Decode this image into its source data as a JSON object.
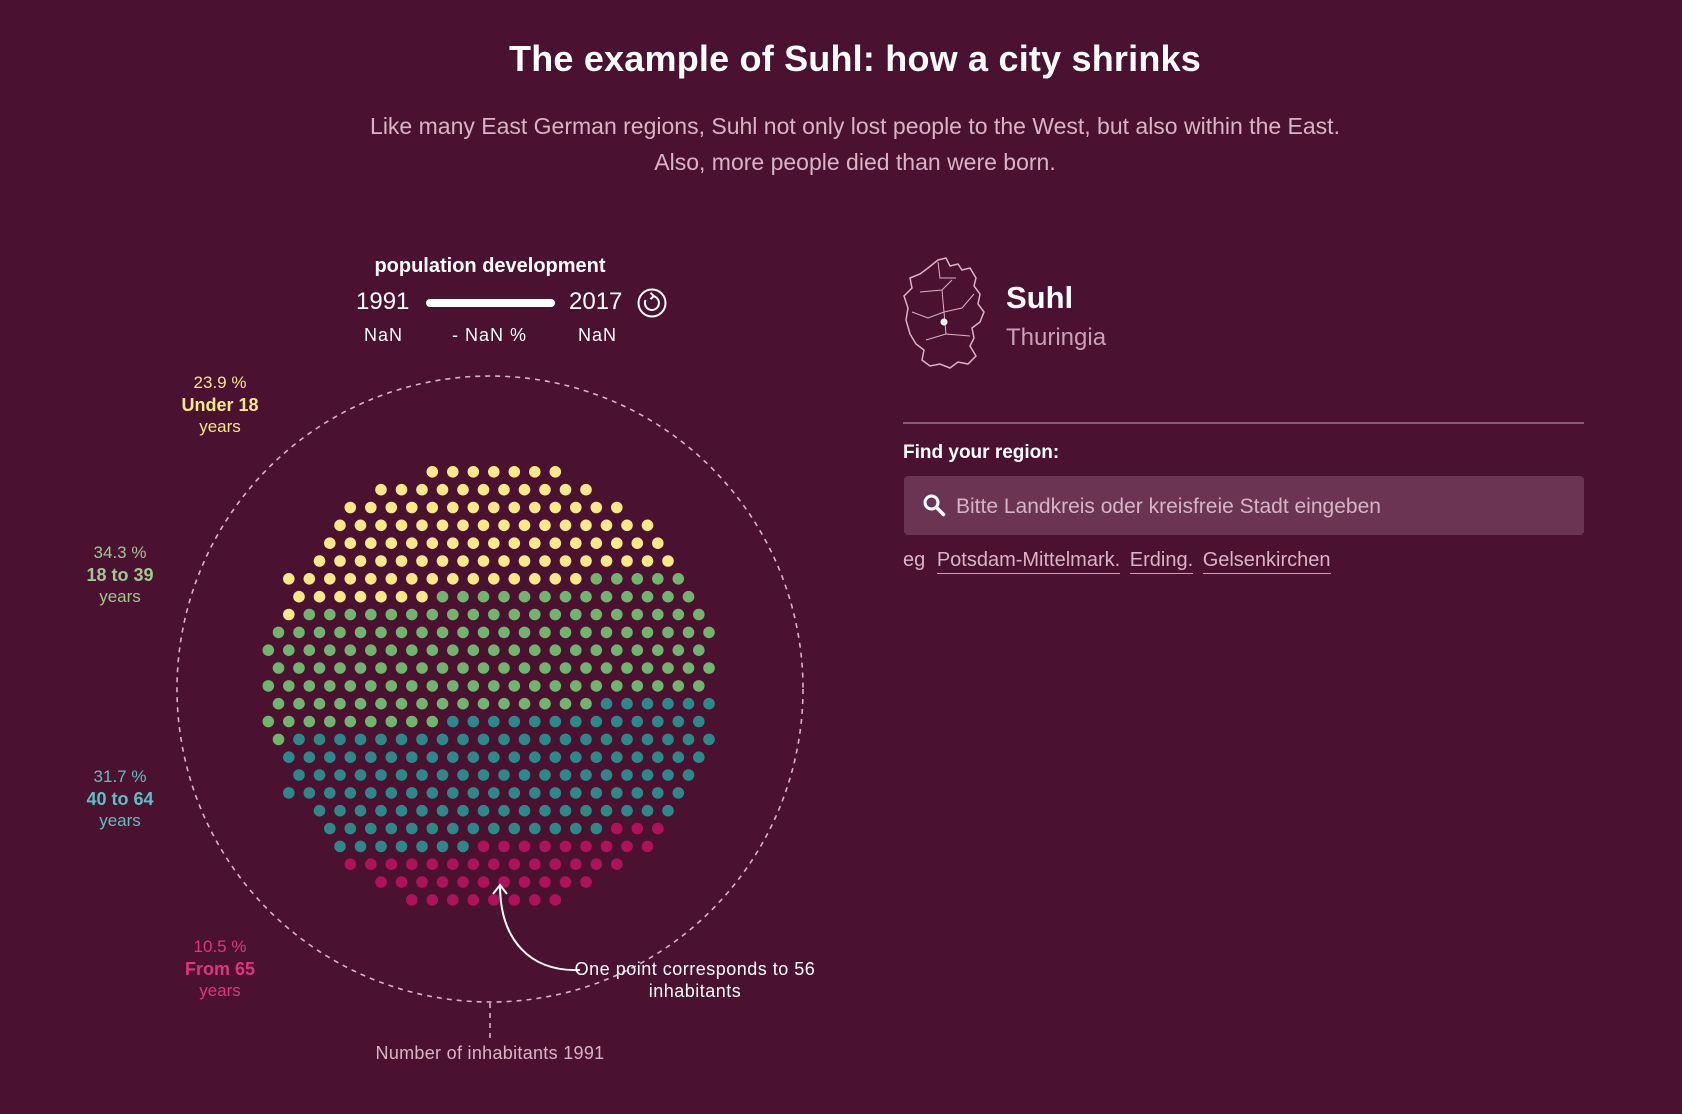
{
  "header": {
    "title": "The example of Suhl: how a city shrinks",
    "subtitle": "Like many East German regions, Suhl not only lost people to the West, but also within the East. Also, more people died than were born."
  },
  "development": {
    "title": "population development",
    "year_start": "1991",
    "year_end": "2017",
    "value_start": "NaN",
    "change": "- NaN %",
    "value_end": "NaN",
    "slider_position": 1.0,
    "reset_icon": "reset-icon"
  },
  "groups": [
    {
      "percent": "23.9 %",
      "label": "Under 18",
      "unit": "years",
      "color": "#f7e983"
    },
    {
      "percent": "34.3 %",
      "label": "18 to 39",
      "unit": "years",
      "color": "#6fb56c"
    },
    {
      "percent": "31.7 %",
      "label": "40 to 64",
      "unit": "years",
      "color": "#2a8a8a"
    },
    {
      "percent": "10.5 %",
      "label": "From 65",
      "unit": "years",
      "color": "#b0125a"
    }
  ],
  "annotation": "One point corresponds to 56 inhabitants",
  "footer_label": "Number of inhabitants 1991",
  "region": {
    "name": "Suhl",
    "state": "Thuringia",
    "map_icon": "germany-map-icon"
  },
  "search": {
    "label": "Find your region:",
    "placeholder": "Bitte Landkreis oder kreisfreie Stadt eingeben",
    "examples_prefix": "eg",
    "examples": [
      "Potsdam-Mittelmark.",
      "Erding.",
      "Gelsenkirchen"
    ]
  },
  "colors": {
    "background": "#4b1130",
    "under18": "#f7e983",
    "age18to39": "#6fb56c",
    "age40to64": "#2a8a8a",
    "from65": "#b0125a"
  },
  "chart_data": {
    "type": "scatter",
    "title": "",
    "series": [
      {
        "name": "Under 18",
        "share_percent": 23.9
      },
      {
        "name": "18 to 39",
        "share_percent": 34.3
      },
      {
        "name": "40 to 64",
        "share_percent": 31.7
      },
      {
        "name": "From 65",
        "share_percent": 10.5
      }
    ],
    "inhabitants_per_point": 56
  }
}
